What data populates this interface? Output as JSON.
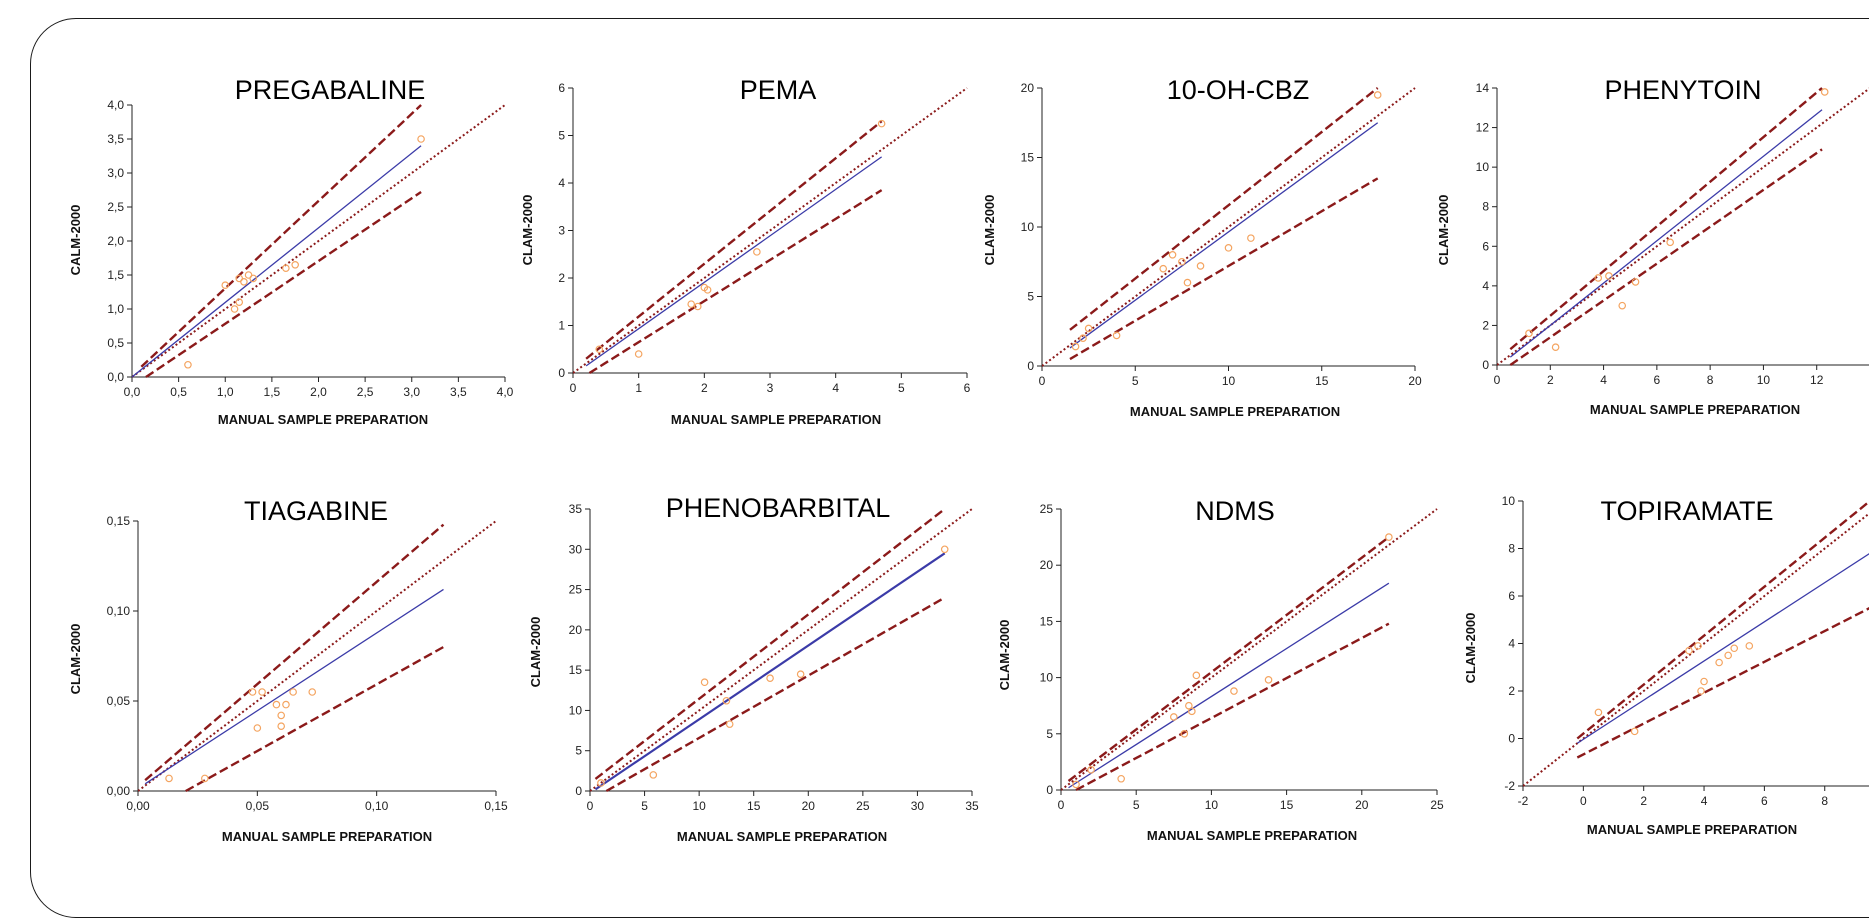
{
  "chart_data": [
    {
      "type": "scatter",
      "title": "PREGABALINE",
      "xlabel": "MANUAL SAMPLE PREPARATION",
      "ylabel": "CALM-2000",
      "xlim": [
        0,
        4
      ],
      "ylim": [
        0,
        4
      ],
      "xticks": [
        "0,0",
        "0,5",
        "1,0",
        "1,5",
        "2,0",
        "2,5",
        "3,0",
        "3,5",
        "4,0"
      ],
      "yticks": [
        "0,0",
        "0,5",
        "1,0",
        "1,5",
        "2,0",
        "2,5",
        "3,0",
        "3,5",
        "4,0"
      ],
      "points": [
        [
          0.6,
          0.18
        ],
        [
          1.0,
          1.35
        ],
        [
          1.1,
          1.0
        ],
        [
          1.15,
          1.1
        ],
        [
          1.15,
          1.45
        ],
        [
          1.2,
          1.4
        ],
        [
          1.25,
          1.5
        ],
        [
          1.3,
          1.45
        ],
        [
          1.65,
          1.6
        ],
        [
          1.75,
          1.65
        ],
        [
          3.1,
          3.5
        ]
      ],
      "fit_line": [
        [
          0,
          0
        ],
        [
          3.1,
          3.4
        ]
      ],
      "identity_line": [
        [
          0,
          0
        ],
        [
          4,
          4
        ]
      ],
      "ci_upper": [
        [
          0.1,
          0.15
        ],
        [
          3.1,
          4.0
        ]
      ],
      "ci_lower": [
        [
          0.15,
          0
        ],
        [
          3.1,
          2.72
        ]
      ]
    },
    {
      "type": "scatter",
      "title": "PEMA",
      "xlabel": "MANUAL SAMPLE PREPARATION",
      "ylabel": "CLAM-2000",
      "xlim": [
        0,
        6
      ],
      "ylim": [
        0,
        6
      ],
      "xticks": [
        "0",
        "1",
        "2",
        "3",
        "4",
        "5",
        "6"
      ],
      "yticks": [
        "0",
        "1",
        "2",
        "3",
        "4",
        "5",
        "6"
      ],
      "points": [
        [
          0.4,
          0.5
        ],
        [
          1.0,
          0.4
        ],
        [
          1.8,
          1.45
        ],
        [
          1.9,
          1.4
        ],
        [
          2.0,
          1.8
        ],
        [
          2.05,
          1.75
        ],
        [
          2.8,
          2.55
        ],
        [
          4.7,
          5.25
        ]
      ],
      "fit_line": [
        [
          0.2,
          0.15
        ],
        [
          4.7,
          4.55
        ]
      ],
      "identity_line": [
        [
          0,
          0
        ],
        [
          6,
          6
        ]
      ],
      "ci_upper": [
        [
          0.2,
          0.3
        ],
        [
          4.7,
          5.3
        ]
      ],
      "ci_lower": [
        [
          0.25,
          0
        ],
        [
          4.7,
          3.85
        ]
      ]
    },
    {
      "type": "scatter",
      "title": "10-OH-CBZ",
      "xlabel": "MANUAL SAMPLE PREPARATION",
      "ylabel": "CLAM-2000",
      "xlim": [
        0,
        20
      ],
      "ylim": [
        0,
        20
      ],
      "xticks": [
        "0",
        "5",
        "10",
        "15",
        "20"
      ],
      "yticks": [
        "0",
        "5",
        "10",
        "15",
        "20"
      ],
      "points": [
        [
          1.8,
          1.4
        ],
        [
          2.2,
          2.0
        ],
        [
          2.5,
          2.7
        ],
        [
          4.0,
          2.2
        ],
        [
          6.5,
          7.0
        ],
        [
          7.0,
          8.0
        ],
        [
          7.5,
          7.5
        ],
        [
          7.8,
          6.0
        ],
        [
          8.5,
          7.2
        ],
        [
          10.0,
          8.5
        ],
        [
          11.2,
          9.2
        ],
        [
          18.0,
          19.5
        ]
      ],
      "fit_line": [
        [
          1.5,
          1.3
        ],
        [
          18,
          17.5
        ]
      ],
      "identity_line": [
        [
          0,
          0
        ],
        [
          20,
          20
        ]
      ],
      "ci_upper": [
        [
          1.5,
          2.6
        ],
        [
          18,
          20
        ]
      ],
      "ci_lower": [
        [
          1.5,
          0.5
        ],
        [
          18,
          13.5
        ]
      ]
    },
    {
      "type": "scatter",
      "title": "PHENYTOIN",
      "xlabel": "MANUAL SAMPLE PREPARATION",
      "ylabel": "CLAM-2000",
      "xlim": [
        0,
        14
      ],
      "ylim": [
        0,
        14
      ],
      "xticks": [
        "0",
        "2",
        "4",
        "6",
        "8",
        "10",
        "12"
      ],
      "yticks": [
        "0",
        "2",
        "4",
        "6",
        "8",
        "10",
        "12",
        "14"
      ],
      "points": [
        [
          1.2,
          1.6
        ],
        [
          2.2,
          0.9
        ],
        [
          3.8,
          4.4
        ],
        [
          4.2,
          4.5
        ],
        [
          4.7,
          3.0
        ],
        [
          5.2,
          4.2
        ],
        [
          6.5,
          6.2
        ],
        [
          12.3,
          13.8
        ]
      ],
      "fit_line": [
        [
          0.5,
          0.4
        ],
        [
          12.2,
          12.9
        ]
      ],
      "identity_line": [
        [
          0,
          0
        ],
        [
          14,
          14
        ]
      ],
      "ci_upper": [
        [
          0.5,
          0.8
        ],
        [
          12.2,
          14
        ]
      ],
      "ci_lower": [
        [
          0.5,
          0
        ],
        [
          12.2,
          10.9
        ]
      ]
    },
    {
      "type": "scatter",
      "title": "TIAGABINE",
      "xlabel": "MANUAL SAMPLE PREPARATION",
      "ylabel": "CLAM-2000",
      "xlim": [
        0,
        0.15
      ],
      "ylim": [
        0,
        0.15
      ],
      "xticks": [
        "0,00",
        "0,05",
        "0,10",
        "0,15"
      ],
      "yticks": [
        "0,00",
        "0,05",
        "0,10",
        "0,15"
      ],
      "points": [
        [
          0.013,
          0.007
        ],
        [
          0.028,
          0.007
        ],
        [
          0.048,
          0.055
        ],
        [
          0.05,
          0.035
        ],
        [
          0.052,
          0.055
        ],
        [
          0.058,
          0.048
        ],
        [
          0.06,
          0.042
        ],
        [
          0.06,
          0.036
        ],
        [
          0.062,
          0.048
        ],
        [
          0.065,
          0.055
        ],
        [
          0.073,
          0.055
        ]
      ],
      "fit_line": [
        [
          0.003,
          0.004
        ],
        [
          0.128,
          0.112
        ]
      ],
      "identity_line": [
        [
          0,
          0
        ],
        [
          0.15,
          0.15
        ]
      ],
      "ci_upper": [
        [
          0.003,
          0.006
        ],
        [
          0.128,
          0.148
        ]
      ],
      "ci_lower": [
        [
          0.02,
          0
        ],
        [
          0.128,
          0.08
        ]
      ]
    },
    {
      "type": "scatter",
      "title": "PHENOBARBITAL",
      "xlabel": "MANUAL SAMPLE PREPARATION",
      "ylabel": "CLAM-2000",
      "xlim": [
        0,
        35
      ],
      "ylim": [
        0,
        35
      ],
      "xticks": [
        "0",
        "5",
        "10",
        "15",
        "20",
        "25",
        "30",
        "35"
      ],
      "yticks": [
        "0",
        "5",
        "10",
        "15",
        "20",
        "25",
        "30",
        "35"
      ],
      "points": [
        [
          1.0,
          1.0
        ],
        [
          5.8,
          2.0
        ],
        [
          10.5,
          13.5
        ],
        [
          12.5,
          11.2
        ],
        [
          12.8,
          8.3
        ],
        [
          16.5,
          14.0
        ],
        [
          19.3,
          14.5
        ],
        [
          32.5,
          30.0
        ]
      ],
      "fit_line": [
        [
          0.5,
          0.2
        ],
        [
          32.5,
          29.5
        ]
      ],
      "identity_line": [
        [
          0,
          0
        ],
        [
          35,
          35
        ]
      ],
      "ci_upper": [
        [
          0.5,
          1.5
        ],
        [
          32.5,
          35
        ]
      ],
      "ci_lower": [
        [
          1.5,
          0
        ],
        [
          32.5,
          24
        ]
      ]
    },
    {
      "type": "scatter",
      "title": "NDMS",
      "xlabel": "MANUAL SAMPLE PREPARATION",
      "ylabel": "CLAM-2000",
      "xlim": [
        0,
        25
      ],
      "ylim": [
        0,
        25
      ],
      "xticks": [
        "0",
        "5",
        "10",
        "15",
        "20",
        "25"
      ],
      "yticks": [
        "0",
        "5",
        "10",
        "15",
        "20",
        "25"
      ],
      "points": [
        [
          1.0,
          0.5
        ],
        [
          2.0,
          1.8
        ],
        [
          4.0,
          1.0
        ],
        [
          7.5,
          6.5
        ],
        [
          8.2,
          5.0
        ],
        [
          8.5,
          7.5
        ],
        [
          8.7,
          7.0
        ],
        [
          9.0,
          10.2
        ],
        [
          11.5,
          8.8
        ],
        [
          13.8,
          9.8
        ],
        [
          21.8,
          22.5
        ]
      ],
      "fit_line": [
        [
          0.5,
          0.2
        ],
        [
          21.8,
          18.4
        ]
      ],
      "identity_line": [
        [
          0,
          0
        ],
        [
          25,
          25
        ]
      ],
      "ci_upper": [
        [
          0.5,
          0.8
        ],
        [
          21.8,
          22.5
        ]
      ],
      "ci_lower": [
        [
          1,
          0
        ],
        [
          21.8,
          14.8
        ]
      ]
    },
    {
      "type": "scatter",
      "title": "TOPIRAMATE",
      "xlabel": "MANUAL SAMPLE PREPARATION",
      "ylabel": "CLAM-2000",
      "xlim": [
        -2,
        9.5
      ],
      "ylim": [
        -2,
        10
      ],
      "xticks": [
        "-2",
        "0",
        "2",
        "4",
        "6",
        "8"
      ],
      "yticks": [
        "-2",
        "0",
        "2",
        "4",
        "6",
        "8",
        "10"
      ],
      "points": [
        [
          0.5,
          1.1
        ],
        [
          1.7,
          0.3
        ],
        [
          3.5,
          3.7
        ],
        [
          3.8,
          3.9
        ],
        [
          3.9,
          2.0
        ],
        [
          4.0,
          2.4
        ],
        [
          4.5,
          3.2
        ],
        [
          4.8,
          3.5
        ],
        [
          5.0,
          3.8
        ],
        [
          5.5,
          3.9
        ]
      ],
      "fit_line": [
        [
          -0.2,
          -0.2
        ],
        [
          9.5,
          7.8
        ]
      ],
      "identity_line": [
        [
          -2,
          -2
        ],
        [
          9.5,
          9.5
        ]
      ],
      "ci_upper": [
        [
          -0.2,
          0
        ],
        [
          9.5,
          10
        ]
      ],
      "ci_lower": [
        [
          -0.2,
          -0.8
        ],
        [
          9.5,
          5.5
        ]
      ]
    }
  ],
  "colors": {
    "fit": "#3b3ba8",
    "dashed": "#8b1a1a",
    "dotted": "#8b1a1a",
    "points": "#f4a460",
    "axis": "#222222",
    "frame": "#1a1a1a"
  }
}
